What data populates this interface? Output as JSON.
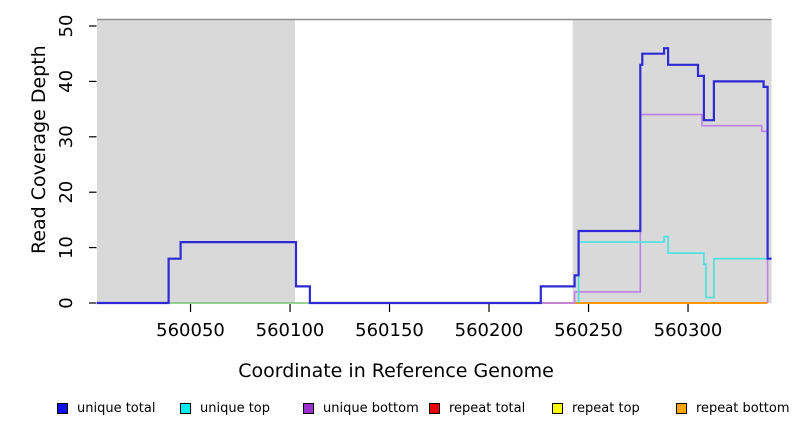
{
  "chart_data": {
    "type": "line",
    "title": "",
    "xlabel": "Coordinate in Reference Genome",
    "ylabel": "Read Coverage Depth",
    "x_domain": [
      560003,
      560342
    ],
    "ylim": [
      0,
      51.2
    ],
    "x_ticks": [
      560050,
      560100,
      560150,
      560200,
      560250,
      560300
    ],
    "y_ticks": [
      0,
      10,
      20,
      30,
      40,
      50
    ],
    "grid": false,
    "plot_bg": "#ffffff",
    "shade_color": "#d9d9d9",
    "top_border_color": "#8f8f8f",
    "shaded_regions": [
      {
        "from": 560003,
        "to": 560102.5
      },
      {
        "from": 560242,
        "to": 560342
      }
    ],
    "series": [
      {
        "name": "repeat total",
        "color": "#e03030",
        "width": 1.6,
        "points": [
          [
            560226,
            0
          ],
          [
            560243,
            0
          ]
        ]
      },
      {
        "name": "repeat bottom",
        "color": "#ff9800",
        "width": 2,
        "points": [
          [
            560243,
            0
          ],
          [
            560340,
            0
          ]
        ]
      },
      {
        "name": "overlap segment (green baseline)",
        "color": "#74c274",
        "width": 1.6,
        "points": [
          [
            560039,
            0
          ],
          [
            560110,
            0
          ]
        ]
      },
      {
        "name": "unique bottom",
        "color": "#be7fe6",
        "width": 1.6,
        "points": [
          [
            560003,
            0
          ],
          [
            560039,
            0
          ],
          [
            560039,
            8
          ],
          [
            560045,
            8
          ],
          [
            560045,
            11
          ],
          [
            560103,
            11
          ],
          [
            560103,
            3
          ],
          [
            560110,
            3
          ],
          [
            560110,
            0
          ],
          [
            560243,
            0
          ],
          [
            560243,
            2
          ],
          [
            560276,
            2
          ],
          [
            560276,
            34
          ],
          [
            560307,
            34
          ],
          [
            560307,
            32
          ],
          [
            560337,
            32
          ],
          [
            560337,
            31
          ],
          [
            560340,
            31
          ],
          [
            560340,
            0
          ]
        ]
      },
      {
        "name": "unique top",
        "color": "#45e2e2",
        "width": 1.6,
        "points": [
          [
            560245,
            0
          ],
          [
            560245,
            11
          ],
          [
            560288,
            11
          ],
          [
            560288,
            12
          ],
          [
            560290,
            12
          ],
          [
            560290,
            9
          ],
          [
            560308,
            9
          ],
          [
            560308,
            7
          ],
          [
            560309,
            7
          ],
          [
            560309,
            1
          ],
          [
            560313,
            1
          ],
          [
            560313,
            8
          ],
          [
            560342,
            8
          ]
        ]
      },
      {
        "name": "unique total",
        "color": "#2e2ad4",
        "width": 2.2,
        "points": [
          [
            560003,
            0
          ],
          [
            560039,
            0
          ],
          [
            560039,
            8
          ],
          [
            560045,
            8
          ],
          [
            560045,
            11
          ],
          [
            560103,
            11
          ],
          [
            560103,
            3
          ],
          [
            560110,
            3
          ],
          [
            560110,
            0
          ],
          [
            560226,
            0
          ],
          [
            560226,
            3
          ],
          [
            560243,
            3
          ],
          [
            560243,
            5
          ],
          [
            560245,
            5
          ],
          [
            560245,
            13
          ],
          [
            560276,
            13
          ],
          [
            560276,
            43
          ],
          [
            560277,
            43
          ],
          [
            560277,
            45
          ],
          [
            560288,
            45
          ],
          [
            560288,
            46
          ],
          [
            560290,
            46
          ],
          [
            560290,
            43
          ],
          [
            560305,
            43
          ],
          [
            560305,
            41
          ],
          [
            560308,
            41
          ],
          [
            560308,
            33
          ],
          [
            560313,
            33
          ],
          [
            560313,
            40
          ],
          [
            560338,
            40
          ],
          [
            560338,
            39
          ],
          [
            560340,
            39
          ],
          [
            560340,
            8
          ],
          [
            560342,
            8
          ]
        ]
      }
    ]
  },
  "legend": {
    "items": [
      {
        "label": "unique total",
        "color": "#1010ee"
      },
      {
        "label": "unique top",
        "color": "#00eeee"
      },
      {
        "label": "unique bottom",
        "color": "#9932cc"
      },
      {
        "label": "repeat total",
        "color": "#ee0000"
      },
      {
        "label": "repeat top",
        "color": "#ffff00"
      },
      {
        "label": "repeat bottom",
        "color": "#ffa500"
      }
    ]
  }
}
